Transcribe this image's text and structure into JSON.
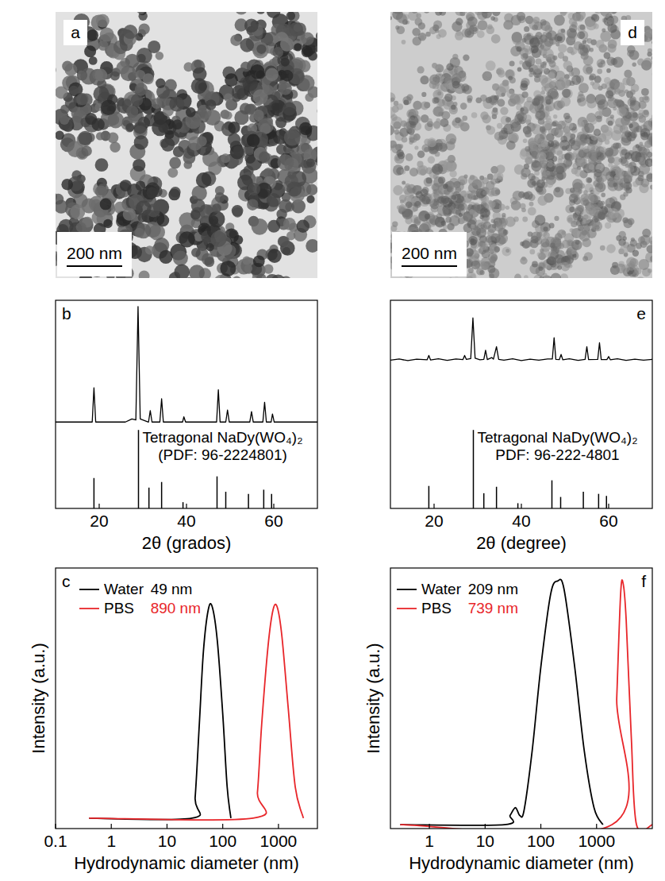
{
  "chart_data": [
    {
      "type": "image",
      "panel": "a",
      "scale_bar": "200 nm"
    },
    {
      "type": "line",
      "panel": "b",
      "xlabel": "2θ (grados)",
      "xlim": [
        10,
        70
      ],
      "xticks": [
        20,
        40,
        60
      ],
      "ylim": [
        0,
        100
      ],
      "tick_labels": "x",
      "annotations": [
        "Tetragonal NaDy(WO₄)₂",
        "(PDF: 96-2224801)"
      ],
      "series": [
        {
          "type": "line",
          "color": "#000000",
          "x": [
            10,
            18.4,
            18.8,
            19.2,
            26,
            27.5,
            28.4,
            28.9,
            29.4,
            31.3,
            31.7,
            32.1,
            33.9,
            34.3,
            34.7,
            39.1,
            39.4,
            39.8,
            46.9,
            47.3,
            47.7,
            49.0,
            49.4,
            49.8,
            54.5,
            54.9,
            55.3,
            57.5,
            57.9,
            58.3,
            59.4,
            59.7,
            60.1,
            70
          ],
          "values": [
            41.5,
            41.5,
            58,
            41.5,
            41.5,
            43,
            42.5,
            97,
            43,
            41.5,
            47,
            41.5,
            41.5,
            52.7,
            41.5,
            41.5,
            44,
            41.5,
            41.5,
            57,
            41.5,
            41.5,
            47.3,
            41.5,
            41.5,
            46.5,
            41.5,
            41.5,
            51,
            41.5,
            41.5,
            45.4,
            41.5,
            41.5
          ]
        },
        {
          "type": "bar",
          "color": "#000000",
          "x": [
            18.8,
            29.0,
            31.4,
            34.3,
            39.2,
            47.0,
            49.0,
            54.2,
            57.7,
            59.5
          ],
          "values": [
            14.6,
            37.7,
            10,
            12.7,
            3,
            15.4,
            8,
            7,
            9,
            7
          ]
        }
      ]
    },
    {
      "type": "line",
      "panel": "c",
      "log": "x",
      "xlabel": "Hydrodynamic diameter (nm)",
      "ylabel": "Intensity (a.u.)",
      "xlim": [
        0.1,
        5000
      ],
      "xticks": [
        0.1,
        1,
        10,
        100,
        1000
      ],
      "ylim": [
        0,
        100
      ],
      "tick_labels": "x",
      "legend": "upper left",
      "series": [
        {
          "name": "Water",
          "annotation": "49 nm",
          "color": "#000000",
          "x": [
            0.4,
            28,
            32,
            38,
            45,
            55,
            65,
            80,
            100,
            120,
            140
          ],
          "values": [
            4,
            4,
            12,
            40,
            68,
            84,
            85,
            72,
            44,
            16,
            4
          ]
        },
        {
          "name": "PBS",
          "annotation": "890 nm",
          "color": "#e8262a",
          "x": [
            0.4,
            350,
            420,
            500,
            650,
            800,
            950,
            1150,
            1500,
            2000,
            2800
          ],
          "values": [
            4,
            4,
            14,
            40,
            70,
            84,
            85,
            74,
            46,
            16,
            4
          ]
        }
      ]
    },
    {
      "type": "image",
      "panel": "d",
      "scale_bar": "200 nm"
    },
    {
      "type": "line",
      "panel": "e",
      "xlabel": "2θ (degree)",
      "xlim": [
        10,
        70
      ],
      "xticks": [
        20,
        40,
        60
      ],
      "ylim": [
        0,
        100
      ],
      "tick_labels": "x",
      "annotations": [
        "Tetragonal NaDy(WO₄)₂",
        "PDF: 96-222-4801"
      ],
      "series": [
        {
          "type": "line",
          "color": "#000000",
          "x": [
            10,
            12,
            14,
            16,
            18.4,
            18.8,
            19.2,
            21,
            23,
            25,
            26.6,
            27,
            27.4,
            28.4,
            28.9,
            29.4,
            30.5,
            31.4,
            31.8,
            32.2,
            33.2,
            33.6,
            34.3,
            34.8,
            36,
            38,
            40,
            42,
            44,
            46,
            47.1,
            47.5,
            47.9,
            48.7,
            49.1,
            49.5,
            51,
            53,
            54.6,
            55,
            55.4,
            57.5,
            57.9,
            58.3,
            59.6,
            60,
            60.4,
            62,
            64,
            66,
            68,
            70
          ],
          "values": [
            71.2,
            71.8,
            71.0,
            71.7,
            71.4,
            73.5,
            71.3,
            71.9,
            71.1,
            71.8,
            71.5,
            73.5,
            71.6,
            72.0,
            91.5,
            72.2,
            71.4,
            71.6,
            76,
            71.5,
            72.5,
            71.7,
            77.7,
            71.6,
            71.2,
            71.9,
            71.0,
            71.7,
            71.2,
            71.8,
            71.8,
            82,
            71.6,
            71.5,
            74,
            71.4,
            71.9,
            71.1,
            71.6,
            77.7,
            71.5,
            71.6,
            79.6,
            71.5,
            71.5,
            73,
            71.4,
            71.9,
            71.1,
            71.7,
            71.2,
            71.6
          ]
        },
        {
          "type": "bar",
          "color": "#000000",
          "x": [
            18.8,
            29.0,
            31.4,
            34.3,
            39.2,
            47.0,
            49.0,
            54.2,
            57.7,
            59.5
          ],
          "values": [
            10.8,
            37.7,
            7.3,
            10.4,
            2.5,
            13.5,
            5.5,
            8,
            7,
            6
          ]
        }
      ]
    },
    {
      "type": "line",
      "panel": "f",
      "log": "x",
      "xlabel": "Hydrodynamic diameter (nm)",
      "ylabel": "Intensity (a.u.)",
      "xlim": [
        0.2,
        10000
      ],
      "xticks": [
        1,
        10,
        100,
        1000
      ],
      "ylim": [
        0,
        100
      ],
      "tick_labels": "x",
      "legend": "upper left",
      "series": [
        {
          "name": "Water",
          "annotation": "209 nm",
          "color": "#000000",
          "x": [
            0.3,
            22,
            28,
            35,
            42,
            50,
            70,
            100,
            150,
            200,
            260,
            400,
            600,
            900,
            1300
          ],
          "values": [
            1.5,
            1.5,
            5,
            8,
            5,
            7,
            30,
            62,
            90,
            95,
            92,
            63,
            30,
            8,
            1.5
          ]
        },
        {
          "name": "PBS",
          "annotation": "739 nm",
          "color": "#e8262a",
          "x": [
            0.3,
            1900,
            2300,
            2700,
            3000,
            3400,
            4200,
            5200,
            10000
          ],
          "values": [
            1.5,
            1.5,
            50,
            90,
            94,
            80,
            35,
            1.5,
            1.5
          ]
        }
      ]
    }
  ]
}
